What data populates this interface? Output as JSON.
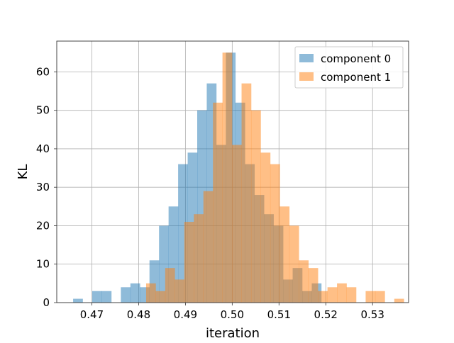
{
  "chart_data": {
    "type": "histogram",
    "title": "",
    "xlabel": "iteration",
    "ylabel": "KL",
    "xlim": [
      0.4625,
      0.5377
    ],
    "ylim": [
      0,
      68
    ],
    "xticks": [
      0.47,
      0.48,
      0.49,
      0.5,
      0.51,
      0.52,
      0.53
    ],
    "xtick_labels": [
      "0.47",
      "0.48",
      "0.49",
      "0.50",
      "0.51",
      "0.52",
      "0.53"
    ],
    "yticks": [
      0,
      10,
      20,
      30,
      40,
      50,
      60
    ],
    "ytick_labels": [
      "0",
      "10",
      "20",
      "30",
      "40",
      "50",
      "60"
    ],
    "grid": true,
    "legend_position": "top-right",
    "series": [
      {
        "name": "component 0",
        "color": "#1f77b4",
        "opacity": 0.5,
        "bin_start": 0.466,
        "bin_width": 0.00204,
        "counts": [
          1,
          0,
          3,
          3,
          0,
          4,
          5,
          4,
          11,
          20,
          25,
          36,
          39,
          50,
          57,
          41,
          65,
          52,
          36,
          28,
          23,
          20,
          6,
          9,
          3,
          5
        ]
      },
      {
        "name": "component 1",
        "color": "#ff7f0e",
        "opacity": 0.5,
        "bin_start": 0.4816,
        "bin_width": 0.00204,
        "counts": [
          5,
          3,
          9,
          6,
          21,
          23,
          29,
          52,
          65,
          41,
          57,
          50,
          39,
          36,
          25,
          20,
          11,
          9,
          3,
          4,
          5,
          4,
          0,
          3,
          3,
          0,
          1
        ]
      }
    ]
  }
}
